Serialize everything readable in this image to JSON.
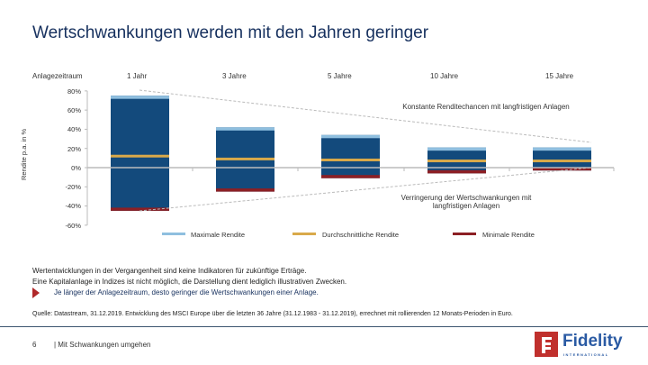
{
  "title": "Wertschwankungen werden mit den Jahren geringer",
  "chart_data": {
    "type": "bar",
    "subtype": "floating-range",
    "header_label": "Anlagezeitraum",
    "categories": [
      "1 Jahr",
      "3 Jahre",
      "5 Jahre",
      "10 Jahre",
      "15 Jahre"
    ],
    "ylabel": "Rendite p.a. in %",
    "ylim": [
      -60,
      80
    ],
    "yticks": [
      "80%",
      "60%",
      "40%",
      "20%",
      "0%",
      "-20%",
      "-40%",
      "-60%"
    ],
    "ytick_values": [
      80,
      60,
      40,
      20,
      0,
      -20,
      -40,
      -60
    ],
    "series": [
      {
        "name": "Maximale Rendite",
        "color": "#8fbfdf",
        "values": [
          75,
          42,
          34,
          21,
          21
        ]
      },
      {
        "name": "Durchschnittliche Rendite",
        "color": "#d9a94a",
        "values": [
          12,
          9,
          8,
          7,
          7
        ]
      },
      {
        "name": "Minimale Rendite",
        "color": "#8c1f24",
        "values": [
          -45,
          -25,
          -11,
          -6,
          -3
        ]
      }
    ],
    "bar_color": "#134a7c",
    "annotations": [
      "Konstante Renditechancen mit langfristigen Anlagen",
      "Verringerung der Wertschwankungen mit langfristigen Anlagen"
    ],
    "legend": "bottom"
  },
  "footer": {
    "disclaimer1": "Wertentwicklungen in der Vergangenheit sind keine Indikatoren für zukünftige Erträge.",
    "disclaimer2": "Eine Kapitalanlage in Indizes ist nicht möglich, die Darstellung dient lediglich illustrativen Zwecken.",
    "keypoint": "Je länger der Anlagezeitraum, desto geringer die Wertschwankungen einer Anlage.",
    "source": "Quelle: Datastream, 31.12.2019. Entwicklung des MSCI Europe über die letzten 36 Jahre (31.12.1983 - 31.12.2019), errechnet mit rollierenden 12 Monats-Perioden in Euro.",
    "page_number": "6",
    "section": "| Mit Schwankungen umgehen"
  },
  "logo": {
    "text": "Fidelity",
    "sub": "INTERNATIONAL",
    "color": "#c0302d"
  }
}
